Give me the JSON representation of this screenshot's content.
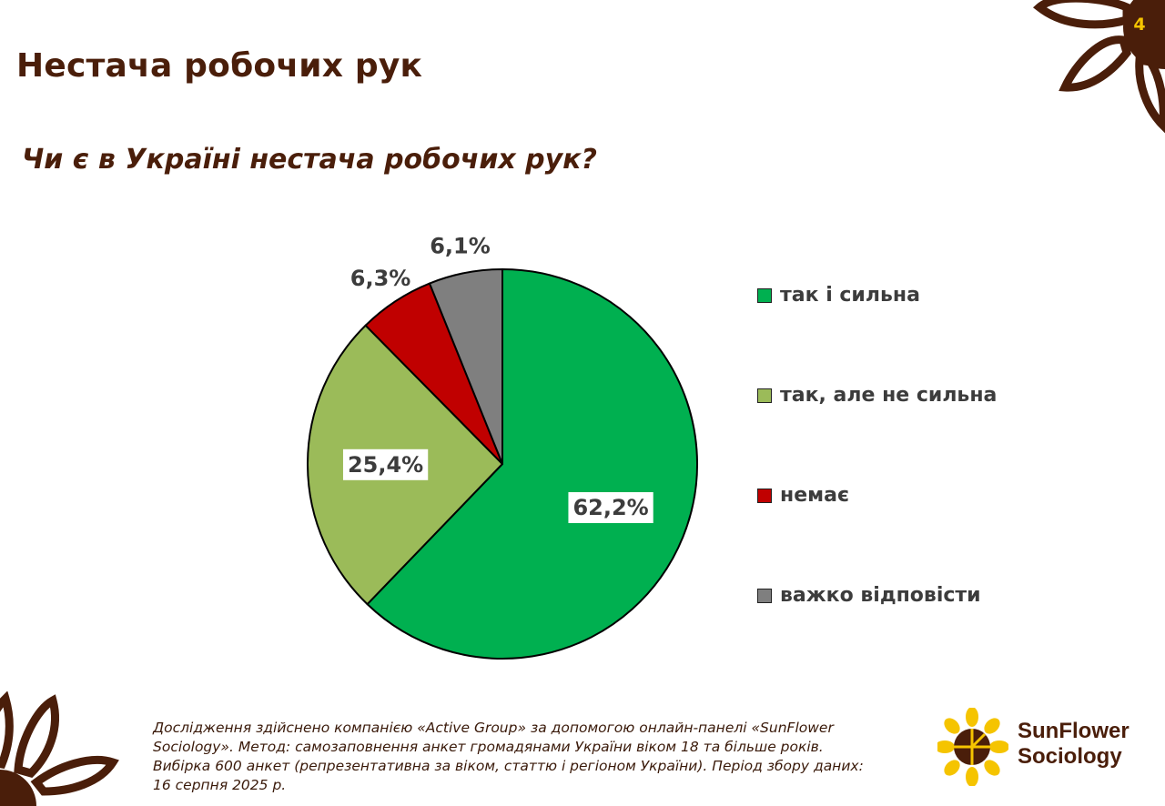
{
  "slide": {
    "title": "Нестача робочих рук",
    "page_number": "4",
    "question": "Чи є в Україні нестача робочих рук?"
  },
  "chart_data": {
    "type": "pie",
    "title": "",
    "slices": [
      {
        "label": "так і сильна",
        "value": 62.2,
        "display": "62,2%",
        "color": "#00b050"
      },
      {
        "label": "так, але не сильна",
        "value": 25.4,
        "display": "25,4%",
        "color": "#9bbb59"
      },
      {
        "label": "немає",
        "value": 6.3,
        "display": "6,3%",
        "color": "#c00000"
      },
      {
        "label": "важко відповісти",
        "value": 6.1,
        "display": "6,1%",
        "color": "#7f7f7f"
      }
    ],
    "legend_position": "right"
  },
  "footnote": "Дослідження здійснено компанією «Active Group» за допомогою онлайн-панелі «SunFlower Sociology». Метод: самозаповнення анкет громадянами України віком 18 та більше років. Вибірка 600 анкет (репрезентативна за віком, статтю і регіоном України). Період збору даних: 16 серпня 2025 р.",
  "logo": {
    "line1": "SunFlower",
    "line2": "Sociology"
  },
  "colors": {
    "brand_brown": "#4a1e0a",
    "accent_yellow": "#f5c400"
  }
}
